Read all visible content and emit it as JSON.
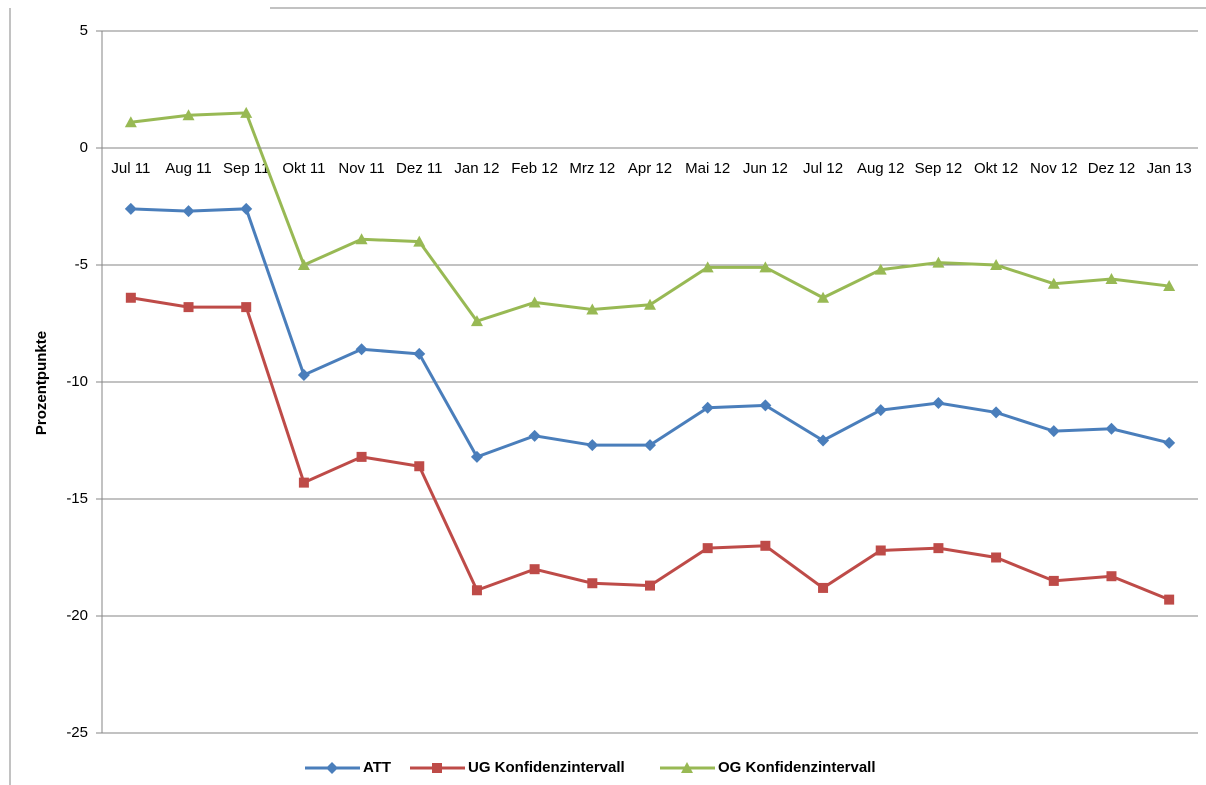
{
  "chart_data": {
    "type": "line",
    "y_label": "Prozentpunkte",
    "categories": [
      "Jul 11",
      "Aug 11",
      "Sep 11",
      "Okt 11",
      "Nov 11",
      "Dez 11",
      "Jan 12",
      "Feb 12",
      "Mrz 12",
      "Apr 12",
      "Mai 12",
      "Jun 12",
      "Jul 12",
      "Aug 12",
      "Sep 12",
      "Okt 12",
      "Nov 12",
      "Dez 12",
      "Jan 13"
    ],
    "series": [
      {
        "name": "ATT",
        "color": "#4a7ebb",
        "marker": "diamond",
        "values": [
          -2.6,
          -2.7,
          -2.6,
          -9.7,
          -8.6,
          -8.8,
          -13.2,
          -12.3,
          -12.7,
          -12.7,
          -11.1,
          -11.0,
          -12.5,
          -11.2,
          -10.9,
          -11.3,
          -12.1,
          -12.0,
          -12.6
        ]
      },
      {
        "name": "UG Konfidenzintervall",
        "color": "#be4b48",
        "marker": "square",
        "values": [
          -6.4,
          -6.8,
          -6.8,
          -14.3,
          -13.2,
          -13.6,
          -18.9,
          -18.0,
          -18.6,
          -18.7,
          -17.1,
          -17.0,
          -18.8,
          -17.2,
          -17.1,
          -17.5,
          -18.5,
          -18.3,
          -19.3
        ]
      },
      {
        "name": "OG Konfidenzintervall",
        "color": "#98b954",
        "marker": "triangle",
        "values": [
          1.1,
          1.4,
          1.5,
          -5.0,
          -3.9,
          -4.0,
          -7.4,
          -6.6,
          -6.9,
          -6.7,
          -5.1,
          -5.1,
          -6.4,
          -5.2,
          -4.9,
          -5.0,
          -5.8,
          -5.6,
          -5.9
        ]
      }
    ],
    "ylim": [
      -25,
      5
    ],
    "yticks": [
      -25,
      -20,
      -15,
      -10,
      -5,
      0,
      5
    ],
    "grid": true,
    "legend": "bottom"
  }
}
